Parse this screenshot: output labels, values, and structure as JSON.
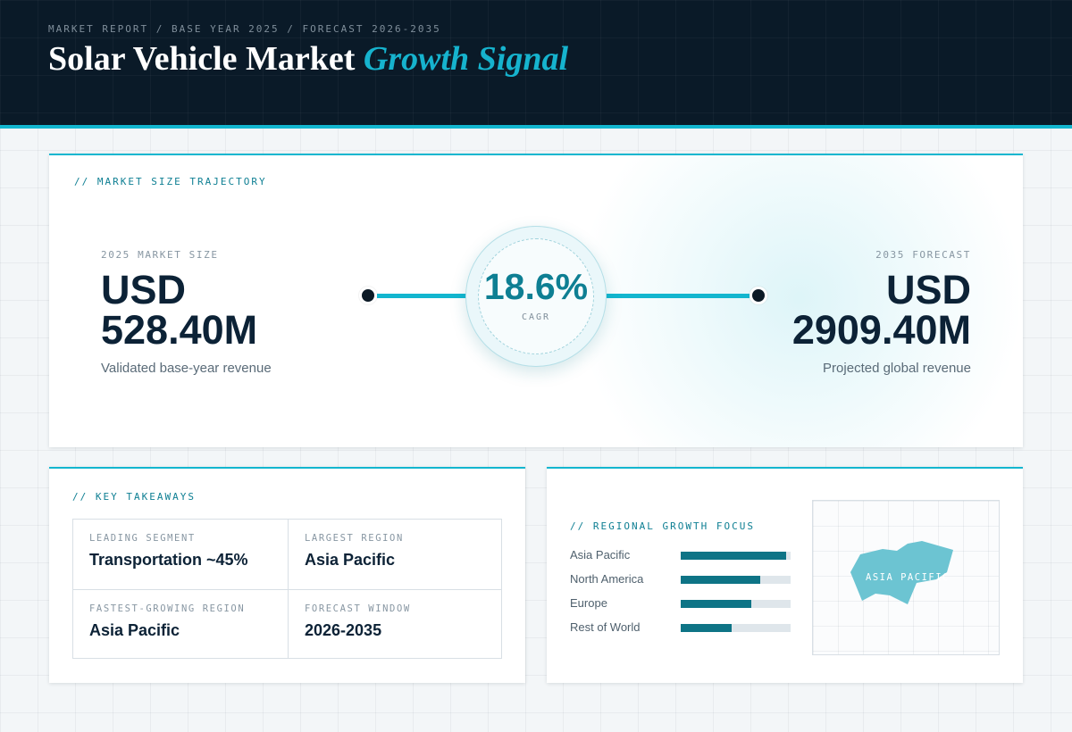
{
  "header": {
    "breadcrumb": "MARKET REPORT / BASE YEAR 2025 / FORECAST 2026-2035",
    "title_main": "Solar Vehicle Market",
    "title_accent": "Growth Signal"
  },
  "trajectory": {
    "label": "// MARKET SIZE TRAJECTORY",
    "base": {
      "kicker": "2025 MARKET SIZE",
      "currency": "USD",
      "amount": "528.40M",
      "caption": "Validated base-year revenue"
    },
    "cagr": {
      "value": "18.6%",
      "label": "CAGR"
    },
    "forecast": {
      "kicker": "2035 FORECAST",
      "currency": "USD",
      "amount": "2909.40M",
      "caption": "Projected global revenue"
    }
  },
  "takeaways": {
    "label": "// KEY TAKEAWAYS",
    "items": [
      {
        "kicker": "LEADING SEGMENT",
        "value": "Transportation ~45%"
      },
      {
        "kicker": "LARGEST REGION",
        "value": "Asia Pacific"
      },
      {
        "kicker": "FASTEST-GROWING REGION",
        "value": "Asia Pacific"
      },
      {
        "kicker": "FORECAST WINDOW",
        "value": "2026-2035"
      }
    ]
  },
  "regional": {
    "label": "// REGIONAL GROWTH FOCUS",
    "bars": [
      {
        "name": "Asia Pacific",
        "share": 0.96
      },
      {
        "name": "North America",
        "share": 0.72
      },
      {
        "name": "Europe",
        "share": 0.64
      },
      {
        "name": "Rest of World",
        "share": 0.46
      }
    ],
    "map_label": "ASIA PACIFIC"
  },
  "colors": {
    "accent": "#13b6cf",
    "bar_fill": "#0e7486",
    "map_shape": "#6cc4d2",
    "header_bg": "#0a1a28"
  }
}
